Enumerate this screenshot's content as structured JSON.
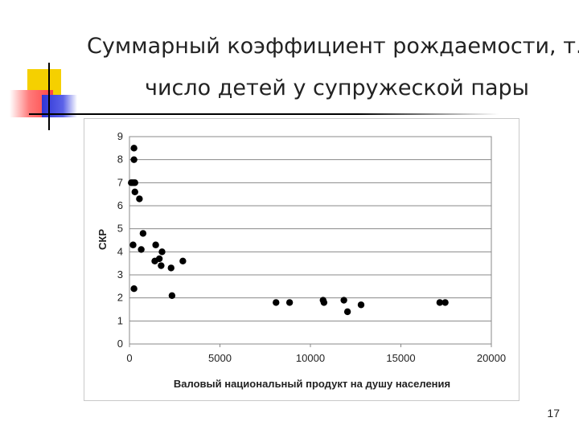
{
  "slide": {
    "title_line1": "Суммарный коэффициент рождаемости, т.е.",
    "title_line2": "число детей у супружеской пары",
    "page_number": "17"
  },
  "colors": {
    "accent_yellow": "#f5d000",
    "accent_red": "#ff5050",
    "accent_blue": "#2e35d6",
    "rule_line": "#000000",
    "dot_color": "#000000",
    "grid_color": "#888888"
  },
  "chart_data": {
    "type": "scatter",
    "xlabel": "Валовый национальный продукт на душу населения",
    "ylabel": "СКР",
    "xlim": [
      0,
      20000
    ],
    "ylim": [
      0,
      9
    ],
    "x_ticks": [
      0,
      5000,
      10000,
      15000,
      20000
    ],
    "y_ticks": [
      0,
      1,
      2,
      3,
      4,
      5,
      6,
      7,
      8,
      9
    ],
    "grid": "horizontal",
    "legend": "none",
    "points": [
      {
        "x": 100,
        "y": 7.0
      },
      {
        "x": 200,
        "y": 7.0
      },
      {
        "x": 300,
        "y": 7.0
      },
      {
        "x": 250,
        "y": 8.5
      },
      {
        "x": 250,
        "y": 8.0
      },
      {
        "x": 300,
        "y": 6.6
      },
      {
        "x": 550,
        "y": 6.3
      },
      {
        "x": 200,
        "y": 4.3
      },
      {
        "x": 650,
        "y": 4.1
      },
      {
        "x": 750,
        "y": 4.8
      },
      {
        "x": 250,
        "y": 2.4
      },
      {
        "x": 1400,
        "y": 3.6
      },
      {
        "x": 1450,
        "y": 4.3
      },
      {
        "x": 1650,
        "y": 3.7
      },
      {
        "x": 1800,
        "y": 4.0
      },
      {
        "x": 1750,
        "y": 3.4
      },
      {
        "x": 2300,
        "y": 3.3
      },
      {
        "x": 2350,
        "y": 2.1
      },
      {
        "x": 2950,
        "y": 3.6
      },
      {
        "x": 8100,
        "y": 1.8
      },
      {
        "x": 8850,
        "y": 1.8
      },
      {
        "x": 10700,
        "y": 1.9
      },
      {
        "x": 10750,
        "y": 1.8
      },
      {
        "x": 11850,
        "y": 1.9
      },
      {
        "x": 12050,
        "y": 1.4
      },
      {
        "x": 12800,
        "y": 1.7
      },
      {
        "x": 17150,
        "y": 1.8
      },
      {
        "x": 17450,
        "y": 1.8
      }
    ]
  }
}
